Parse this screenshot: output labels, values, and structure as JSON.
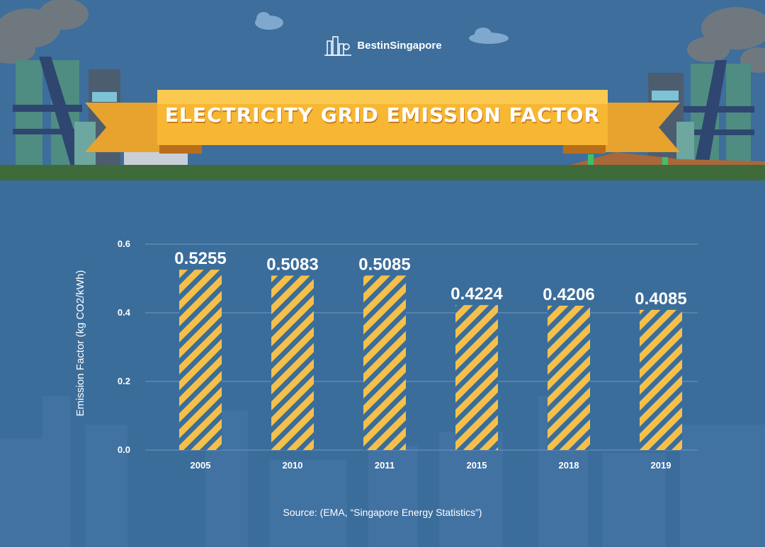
{
  "brand": {
    "name": "BestinSingapore",
    "logo_icon": "city-logo-icon"
  },
  "header": {
    "title": "ELECTRICITY GRID EMISSION FACTOR"
  },
  "source": "Source: (EMA, “Singapore Energy Statistics”)",
  "colors": {
    "background": "#3b6d9b",
    "bar": "#f5c04a",
    "ribbon": "#f7b733",
    "ground": "#3f6b3a"
  },
  "chart_data": {
    "type": "bar",
    "categories": [
      "2005",
      "2010",
      "2011",
      "2015",
      "2018",
      "2019"
    ],
    "values": [
      0.5255,
      0.5083,
      0.5085,
      0.4224,
      0.4206,
      0.4085
    ],
    "data_labels": [
      "0.5255",
      "0.5083",
      "0.5085",
      "0.4224",
      "0.4206",
      "0.4085"
    ],
    "title": "",
    "xlabel": "",
    "ylabel": "Emission Factor (kg CO2/kWh)",
    "ylim": [
      0,
      0.6
    ],
    "yticks": [
      "0.0",
      "0.2",
      "0.4",
      "0.6"
    ],
    "grid": true,
    "legend": "none"
  }
}
